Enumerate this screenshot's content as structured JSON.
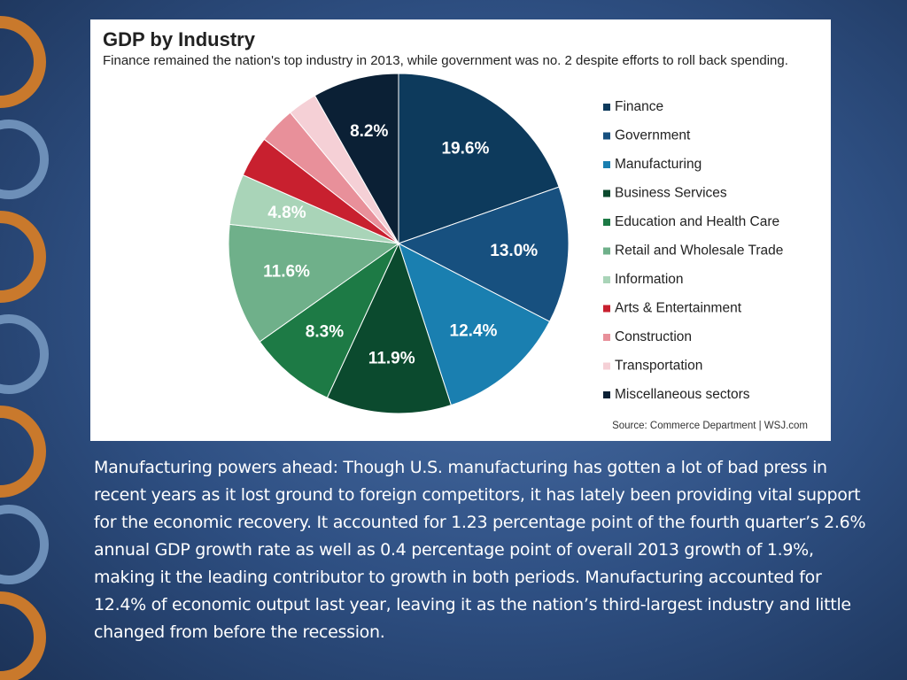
{
  "chart_data": {
    "type": "pie",
    "title": "GDP by Industry",
    "subtitle": "Finance remained the nation's top industry in 2013, while government was no. 2 despite efforts to roll back spending.",
    "source": "Source: Commerce Department  |  WSJ.com",
    "legend": "right",
    "categories": [
      "Finance",
      "Government",
      "Manufacturing",
      "Business Services",
      "Education and Health Care",
      "Retail and Wholesale Trade",
      "Information",
      "Arts & Entertainment",
      "Construction",
      "Transportation",
      "Miscellaneous sectors"
    ],
    "values": [
      19.6,
      13.0,
      12.4,
      11.9,
      8.3,
      11.6,
      4.8,
      3.9,
      3.5,
      2.8,
      8.2
    ],
    "value_labels": [
      "19.6%",
      "13.0%",
      "12.4%",
      "11.9%",
      "8.3%",
      "11.6%",
      "4.8%",
      null,
      null,
      null,
      "8.2%"
    ],
    "colors": [
      "#0d3a5c",
      "#17507f",
      "#1a7fb0",
      "#0b4a2e",
      "#1d7a45",
      "#6fb08a",
      "#a9d4b8",
      "#c8202f",
      "#e8909a",
      "#f5d0d6",
      "#0b2035"
    ]
  },
  "slide": {
    "caption": "Manufacturing powers ahead: Though U.S. manufacturing has gotten a lot of bad press in recent years as it lost ground to foreign competitors, it has lately been providing vital support for the economic recovery. It accounted for 1.23 percentage point of the fourth quarter’s 2.6% annual GDP growth rate as well as 0.4 percentage point of overall 2013 growth of 1.9%, making it the leading contributor to growth in both periods.  Manufacturing accounted for 12.4% of economic output last year, leaving it as the nation’s third-largest industry and little changed from before the recession."
  }
}
